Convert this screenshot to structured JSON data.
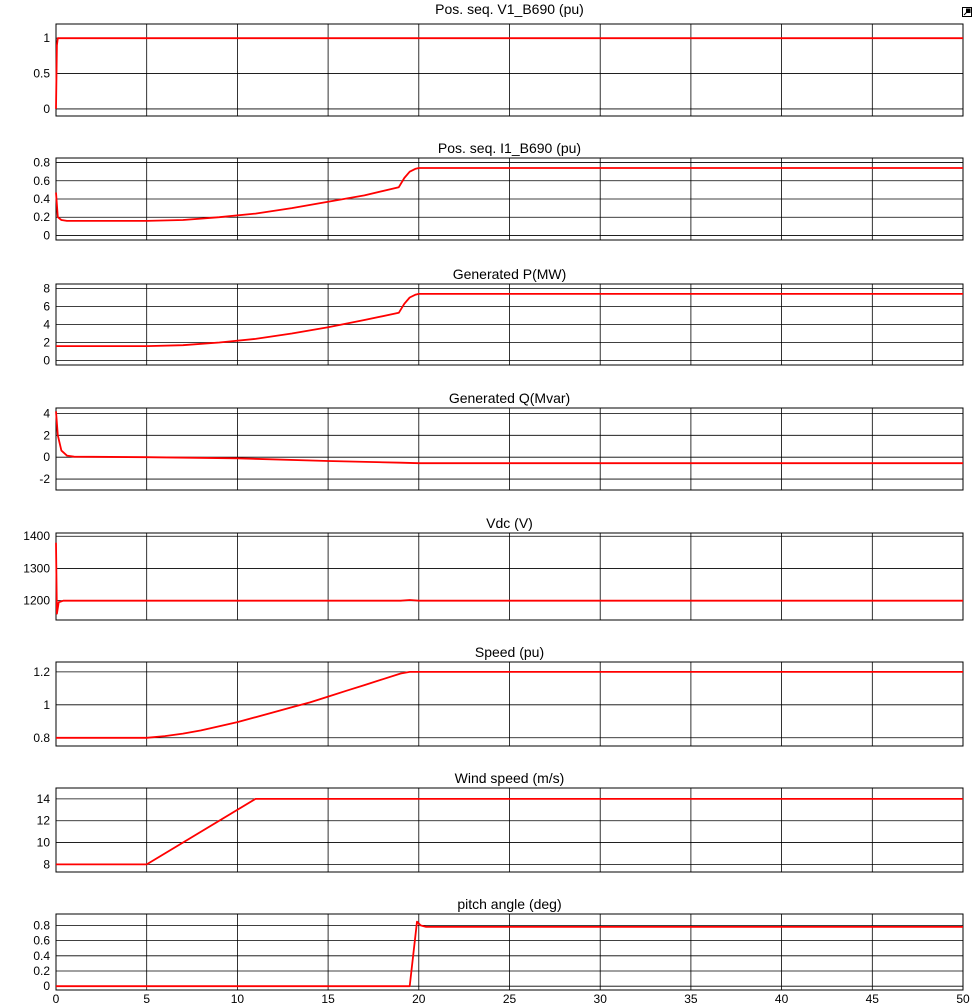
{
  "window": {
    "undock_icon": "undock-icon"
  },
  "colors": {
    "trace": "#ff0000",
    "grid": "#000000",
    "background": "#ffffff"
  },
  "chart_data": [
    {
      "type": "line",
      "title": "Pos. seq. V1_B690 (pu)",
      "xlim": [
        0,
        50
      ],
      "ylim": [
        -0.1,
        1.2
      ],
      "yticks": [
        0,
        0.5,
        1
      ],
      "ytick_labels": [
        "0",
        "0.5",
        "1"
      ],
      "series": [
        {
          "x": [
            0,
            0.05,
            0.1,
            0.3,
            50
          ],
          "y": [
            0,
            0.9,
            1.0,
            1.0,
            1.0
          ]
        }
      ]
    },
    {
      "type": "line",
      "title": "Pos. seq. I1_B690 (pu)",
      "xlim": [
        0,
        50
      ],
      "ylim": [
        -0.05,
        0.85
      ],
      "yticks": [
        0,
        0.2,
        0.4,
        0.6,
        0.8
      ],
      "ytick_labels": [
        "0",
        "0.2",
        "0.4",
        "0.6",
        "0.8"
      ],
      "series": [
        {
          "x": [
            0,
            0.1,
            0.3,
            0.6,
            5,
            7,
            9,
            11,
            13,
            15,
            17,
            18.9,
            19.2,
            19.5,
            19.8,
            20,
            50
          ],
          "y": [
            0.47,
            0.2,
            0.17,
            0.16,
            0.16,
            0.17,
            0.2,
            0.24,
            0.3,
            0.37,
            0.44,
            0.53,
            0.63,
            0.7,
            0.73,
            0.74,
            0.74
          ]
        }
      ]
    },
    {
      "type": "line",
      "title": "Generated P(MW)",
      "xlim": [
        0,
        50
      ],
      "ylim": [
        -0.5,
        8.5
      ],
      "yticks": [
        0,
        2,
        4,
        6,
        8
      ],
      "ytick_labels": [
        "0",
        "2",
        "4",
        "6",
        "8"
      ],
      "series": [
        {
          "x": [
            0,
            0.3,
            5,
            7,
            9,
            11,
            13,
            15,
            17,
            18.9,
            19.2,
            19.5,
            19.8,
            20,
            50
          ],
          "y": [
            1.6,
            1.6,
            1.6,
            1.7,
            2.0,
            2.4,
            3.0,
            3.7,
            4.5,
            5.3,
            6.3,
            7.0,
            7.3,
            7.4,
            7.4
          ]
        }
      ]
    },
    {
      "type": "line",
      "title": "Generated Q(Mvar)",
      "xlim": [
        0,
        50
      ],
      "ylim": [
        -3,
        4.5
      ],
      "yticks": [
        -2,
        0,
        2,
        4
      ],
      "ytick_labels": [
        "-2",
        "0",
        "2",
        "4"
      ],
      "series": [
        {
          "x": [
            0,
            0.1,
            0.3,
            0.6,
            1,
            5,
            10,
            15,
            19,
            20,
            50
          ],
          "y": [
            4.2,
            2.0,
            0.6,
            0.15,
            0.05,
            0.0,
            -0.1,
            -0.35,
            -0.5,
            -0.55,
            -0.55
          ]
        }
      ]
    },
    {
      "type": "line",
      "title": "Vdc (V)",
      "xlim": [
        0,
        50
      ],
      "ylim": [
        1140,
        1410
      ],
      "yticks": [
        1200,
        1300,
        1400
      ],
      "ytick_labels": [
        "1200",
        "1300",
        "1400"
      ],
      "series": [
        {
          "x": [
            0,
            0.05,
            0.15,
            0.4,
            19,
            19.5,
            20,
            50
          ],
          "y": [
            1380,
            1160,
            1195,
            1200,
            1200,
            1202,
            1200,
            1200
          ]
        }
      ]
    },
    {
      "type": "line",
      "title": "Speed (pu)",
      "xlim": [
        0,
        50
      ],
      "ylim": [
        0.75,
        1.26
      ],
      "yticks": [
        0.8,
        1,
        1.2
      ],
      "ytick_labels": [
        "0.8",
        "1",
        "1.2"
      ],
      "series": [
        {
          "x": [
            0,
            5,
            6,
            7,
            8,
            9,
            10,
            11,
            12,
            13,
            14,
            15,
            16,
            17,
            18,
            19,
            19.5,
            20,
            50
          ],
          "y": [
            0.8,
            0.8,
            0.81,
            0.825,
            0.845,
            0.87,
            0.895,
            0.925,
            0.955,
            0.985,
            1.015,
            1.05,
            1.085,
            1.12,
            1.155,
            1.19,
            1.2,
            1.2,
            1.2
          ]
        }
      ]
    },
    {
      "type": "line",
      "title": "Wind speed (m/s)",
      "xlim": [
        0,
        50
      ],
      "ylim": [
        7.3,
        15
      ],
      "yticks": [
        8,
        10,
        12,
        14
      ],
      "ytick_labels": [
        "8",
        "10",
        "12",
        "14"
      ],
      "series": [
        {
          "x": [
            0,
            5,
            11,
            50
          ],
          "y": [
            8,
            8,
            14,
            14
          ]
        }
      ]
    },
    {
      "type": "line",
      "title": "pitch angle (deg)",
      "xlim": [
        0,
        50
      ],
      "ylim": [
        -0.05,
        0.95
      ],
      "yticks": [
        0,
        0.2,
        0.4,
        0.6,
        0.8
      ],
      "ytick_labels": [
        "0",
        "0.2",
        "0.4",
        "0.6",
        "0.8"
      ],
      "xticks": [
        0,
        5,
        10,
        15,
        20,
        25,
        30,
        35,
        40,
        45,
        50
      ],
      "xtick_labels": [
        "0",
        "5",
        "10",
        "15",
        "20",
        "25",
        "30",
        "35",
        "40",
        "45",
        "50"
      ],
      "series": [
        {
          "x": [
            0,
            19.5,
            19.9,
            20.1,
            20.4,
            50
          ],
          "y": [
            0,
            0,
            0.85,
            0.8,
            0.78,
            0.78
          ]
        }
      ]
    }
  ]
}
